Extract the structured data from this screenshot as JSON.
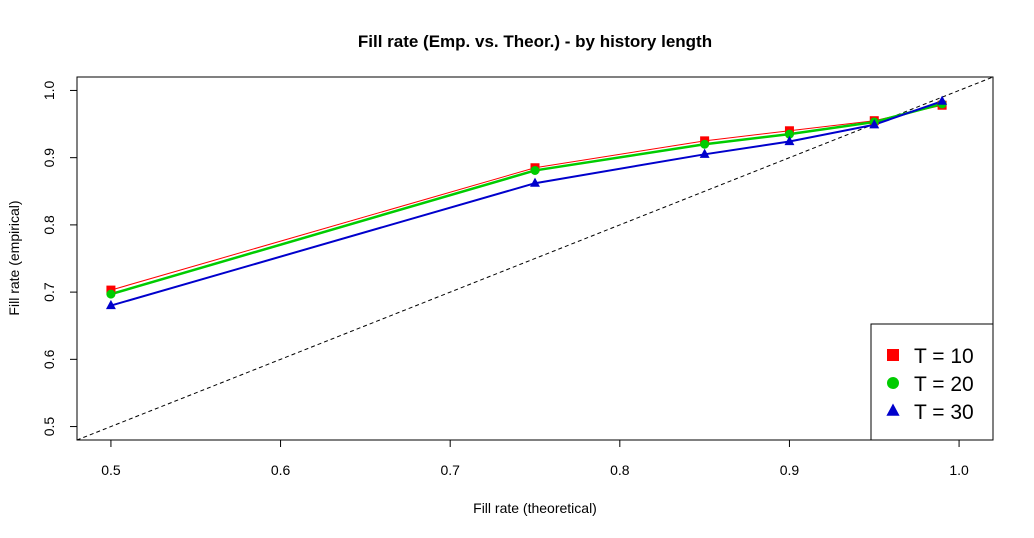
{
  "chart_data": {
    "type": "line",
    "title": "Fill rate (Emp. vs. Theor.) - by history length",
    "xlabel": "Fill rate (theoretical)",
    "ylabel": "Fill rate (empirical)",
    "xlim": [
      0.48,
      1.02
    ],
    "ylim": [
      0.48,
      1.02
    ],
    "xticks": [
      0.5,
      0.6,
      0.7,
      0.8,
      0.9,
      1.0
    ],
    "xtick_labels": [
      "0.5",
      "0.6",
      "0.7",
      "0.8",
      "0.9",
      "1.0"
    ],
    "yticks": [
      0.5,
      0.6,
      0.7,
      0.8,
      0.9,
      1.0
    ],
    "ytick_labels": [
      "0.5",
      "0.6",
      "0.7",
      "0.8",
      "0.9",
      "1.0"
    ],
    "x": [
      0.5,
      0.75,
      0.85,
      0.9,
      0.95,
      0.99
    ],
    "series": [
      {
        "name": "T = 10",
        "color": "#ff0000",
        "marker": "square",
        "values": [
          0.703,
          0.885,
          0.925,
          0.94,
          0.955,
          0.978
        ]
      },
      {
        "name": "T = 20",
        "color": "#00cc00",
        "marker": "circle",
        "values": [
          0.697,
          0.881,
          0.92,
          0.935,
          0.953,
          0.98
        ]
      },
      {
        "name": "T = 30",
        "color": "#0000cc",
        "marker": "triangle",
        "values": [
          0.68,
          0.862,
          0.905,
          0.924,
          0.949,
          0.984
        ]
      }
    ],
    "reference_line": {
      "type": "identity",
      "style": "dashed",
      "color": "#000000"
    },
    "grid": false,
    "legend": "bottom-right"
  }
}
